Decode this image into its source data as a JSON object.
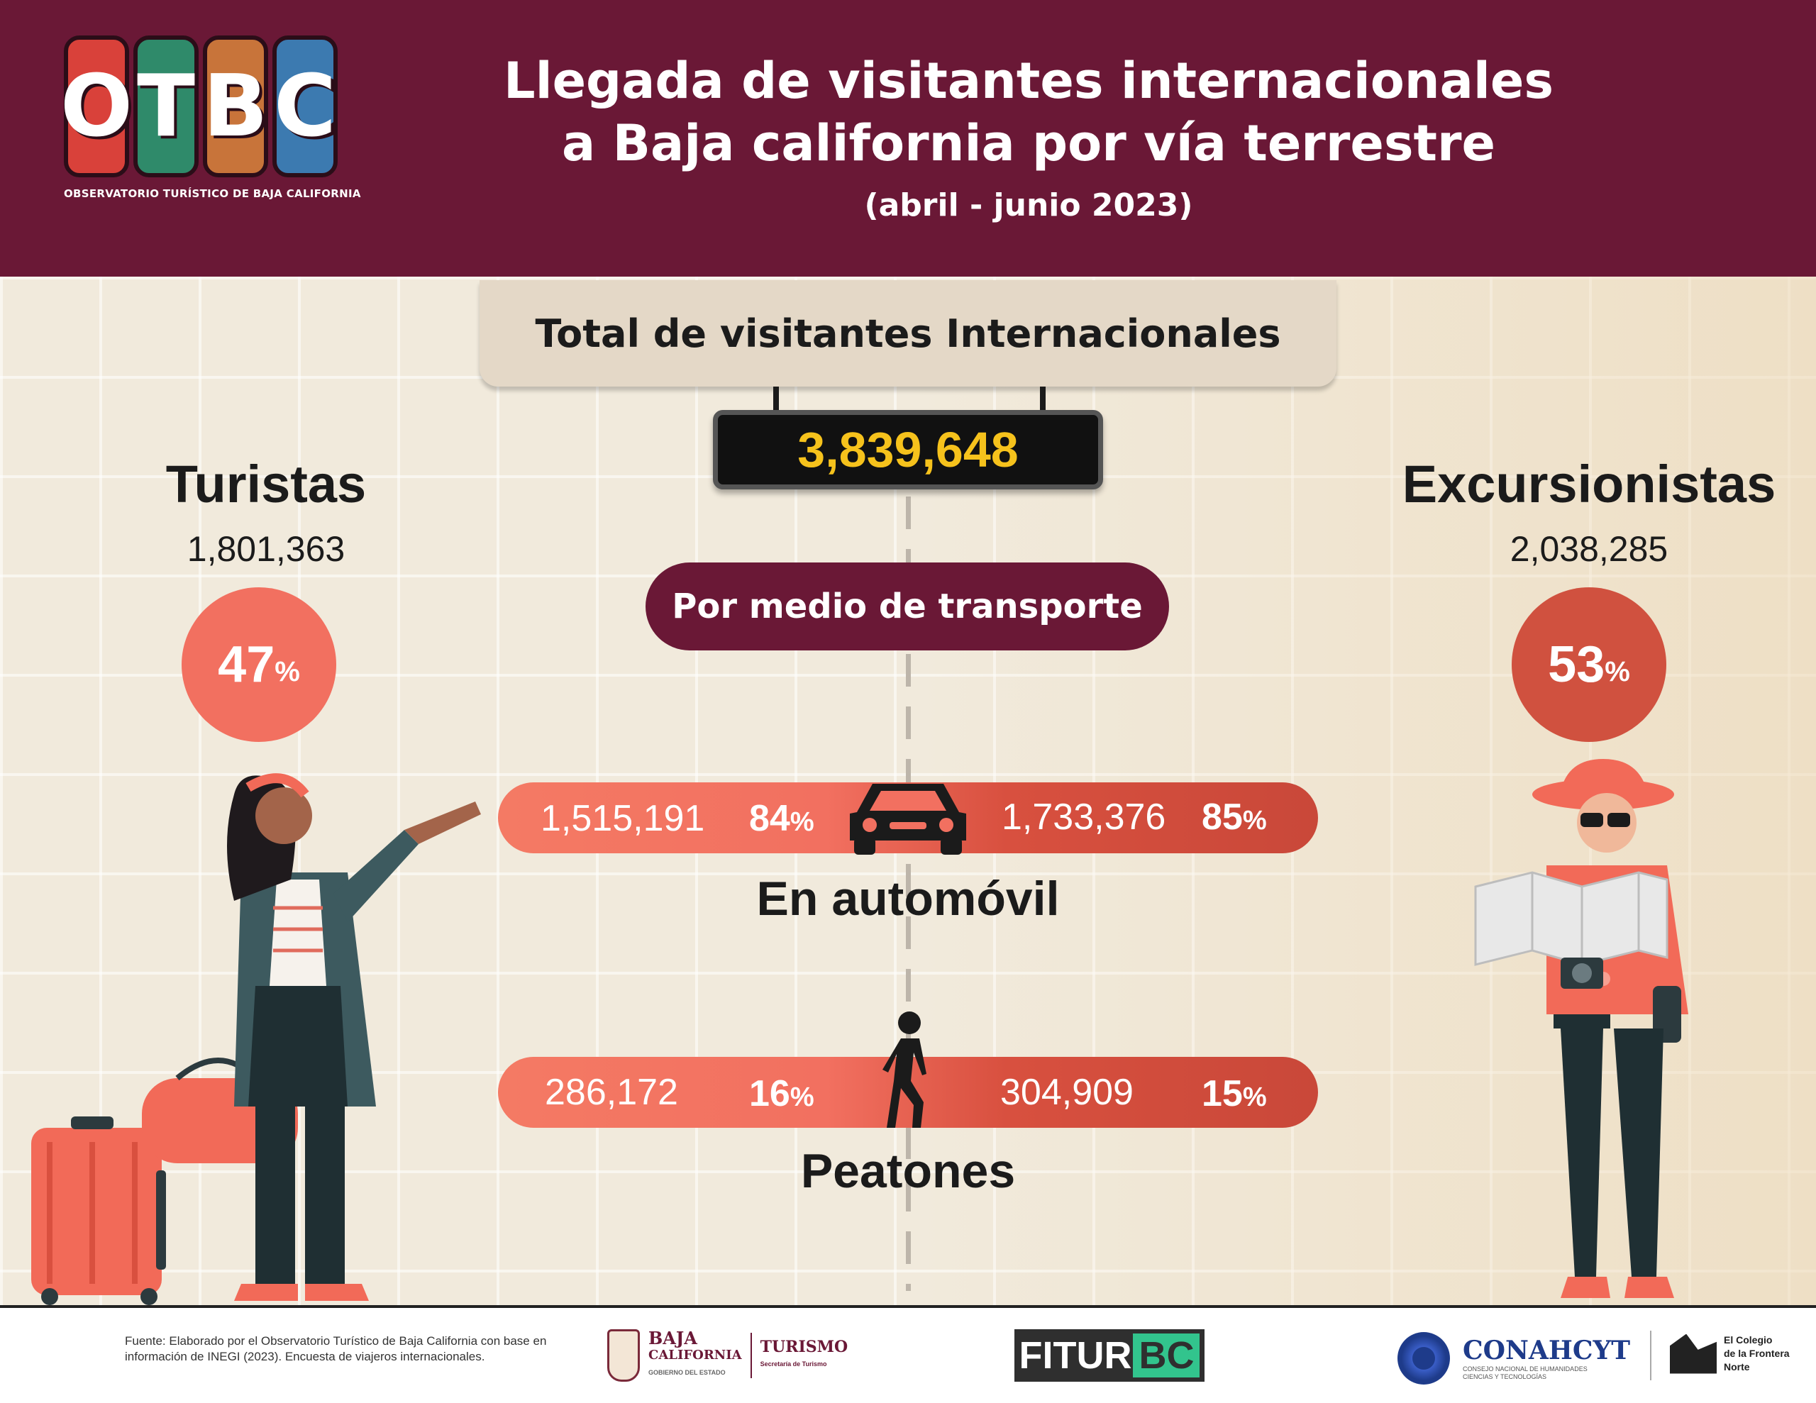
{
  "header": {
    "logo_text": "OTBC",
    "logo_subtitle": "OBSERVATORIO TURÍSTICO DE BAJA CALIFORNIA",
    "title_line1": "Llegada de visitantes internacionales",
    "title_line2": "a Baja california por vía terrestre",
    "period": "(abril - junio 2023)"
  },
  "total": {
    "label": "Total de visitantes Internacionales",
    "value": "3,839,648"
  },
  "transport_heading": "Por medio de transporte",
  "turistas": {
    "title": "Turistas",
    "count": "1,801,363",
    "percent_num": "47",
    "percent_sign": "%"
  },
  "excursionistas": {
    "title": "Excursionistas",
    "count": "2,038,285",
    "percent_num": "53",
    "percent_sign": "%"
  },
  "automovil": {
    "label": "En automóvil",
    "turistas_value": "1,515,191",
    "turistas_pct": "84",
    "excursionistas_value": "1,733,376",
    "excursionistas_pct": "85",
    "icon": "car-icon"
  },
  "peatones": {
    "label": "Peatones",
    "turistas_value": "286,172",
    "turistas_pct": "16",
    "excursionistas_value": "304,909",
    "excursionistas_pct": "15",
    "icon": "pedestrian-icon"
  },
  "pct_sign": "%",
  "footer": {
    "source": "Fuente: Elaborado por el Observatorio Turístico de Baja California con base en información de INEGI (2023). Encuesta de viajeros internacionales.",
    "bc_name_1": "BAJA",
    "bc_name_2": "CALIFORNIA",
    "bc_gov": "GOBIERNO DEL ESTADO",
    "bc_turismo": "TURISMO",
    "bc_secretaria": "Secretaría de Turismo",
    "fitur_a": "FITUR",
    "fitur_b": "BC",
    "conahcyt": "CONAHCYT",
    "conahcyt_sub": "CONSEJO NACIONAL DE HUMANIDADES CIENCIAS Y TECNOLOGÍAS",
    "colef_1": "El Colegio",
    "colef_2": "de la Frontera",
    "colef_3": "Norte"
  },
  "colors": {
    "header_bg": "#6a1836",
    "turistas_circle": "#f27060",
    "excursionistas_circle": "#d0513f",
    "total_value": "#f6c21c"
  }
}
